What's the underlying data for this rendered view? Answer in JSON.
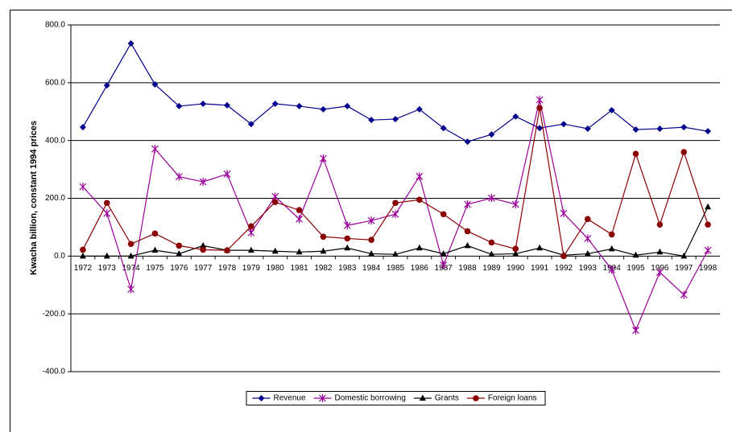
{
  "chart_data": {
    "type": "line",
    "y_label": "Kwacha billion, constant 1994 prices",
    "categories": [
      "1972",
      "1973",
      "1974",
      "1975",
      "1976",
      "1977",
      "1978",
      "1979",
      "1980",
      "1981",
      "1982",
      "1983",
      "1984",
      "1985",
      "1986",
      "1987",
      "1988",
      "1989",
      "1990",
      "1991",
      "1992",
      "1993",
      "1994",
      "1995",
      "1996",
      "1997",
      "1998"
    ],
    "series": [
      {
        "name": "Revenue",
        "color": "#00008b",
        "marker": "diamond",
        "values": [
          446,
          591,
          736,
          594,
          519,
          527,
          522,
          457,
          527,
          519,
          508,
          519,
          471,
          474,
          508,
          443,
          396,
          421,
          483,
          443,
          457,
          441,
          505,
          438,
          441,
          446,
          432
        ]
      },
      {
        "name": "Domestic borrowing",
        "color": "#990099",
        "marker": "star",
        "values": [
          240,
          148,
          -115,
          371,
          275,
          257,
          284,
          81,
          206,
          128,
          338,
          106,
          123,
          145,
          276,
          -31,
          179,
          201,
          179,
          541,
          148,
          61,
          -47,
          -257,
          -56,
          -134,
          20
        ]
      },
      {
        "name": "Grants",
        "color": "#000000",
        "marker": "triangle",
        "values": [
          0,
          0,
          0,
          20,
          8,
          36,
          20,
          20,
          17,
          14,
          17,
          28,
          8,
          6,
          28,
          8,
          36,
          6,
          8,
          28,
          3,
          8,
          25,
          3,
          14,
          0,
          170
        ]
      },
      {
        "name": "Foreign loans",
        "color": "#8b0000",
        "marker": "circle",
        "values": [
          22,
          184,
          42,
          78,
          36,
          22,
          20,
          103,
          187,
          159,
          67,
          61,
          56,
          184,
          195,
          145,
          86,
          47,
          25,
          513,
          0,
          128,
          75,
          354,
          109,
          360,
          109
        ]
      }
    ],
    "ylim": [
      -400,
      800
    ],
    "yticks": [
      {
        "value": -400,
        "label": "-400.0"
      },
      {
        "value": -200,
        "label": "-200.0"
      },
      {
        "value": 0,
        "label": "0.0"
      },
      {
        "value": 200,
        "label": "200.0"
      },
      {
        "value": 400,
        "label": "400.0"
      },
      {
        "value": 600,
        "label": "600.0"
      },
      {
        "value": 800,
        "label": "800.0"
      }
    ],
    "grid": true,
    "legend": "bottom"
  }
}
